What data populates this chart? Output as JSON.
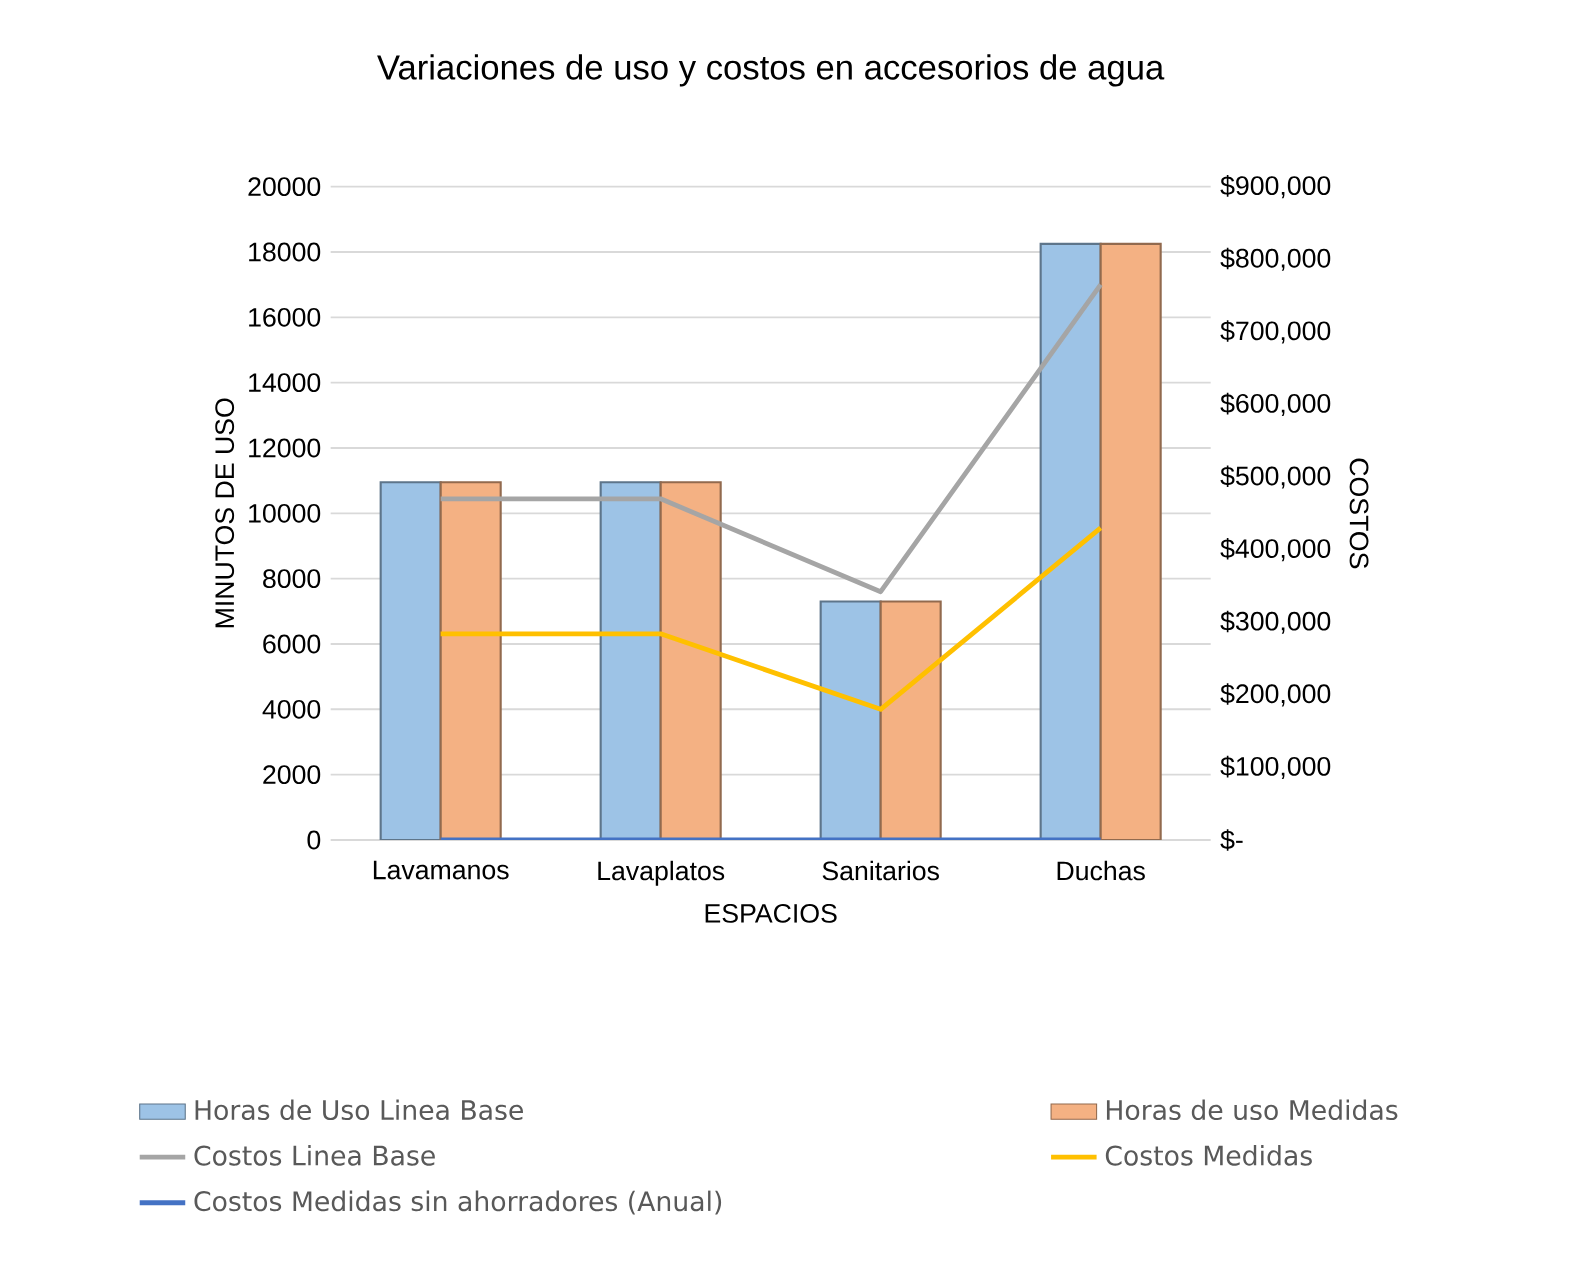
{
  "chart_data": {
    "type": "bar",
    "title": "Variaciones de uso y costos en accesorios de agua",
    "xlabel": "ESPACIOS",
    "ylabel": "MINUTOS DE USO",
    "y2label": "COSTOS",
    "categories": [
      "Lavamanos",
      "Lavaplatos",
      "Sanitarios",
      "Duchas"
    ],
    "series": [
      {
        "name": "Horas de Uso Linea Base",
        "color": "#9dc3e6",
        "values": [
          10950,
          10950,
          7300,
          18250
        ]
      },
      {
        "name": "Horas de uso Medidas",
        "color": "#f4b183",
        "values": [
          10950,
          10950,
          7300,
          18250
        ]
      },
      {
        "name": "Costos Linea Base",
        "type": "line",
        "axis": "y2",
        "color": "#a5a5a5",
        "values": [
          470000,
          470000,
          342000,
          765000
        ]
      },
      {
        "name": "Costos Medidas",
        "type": "line",
        "axis": "y2",
        "color": "#ffc000",
        "values": [
          284000,
          284000,
          180000,
          430000
        ]
      },
      {
        "name": "Costos Medidas sin ahorradores (Anual)",
        "type": "line",
        "axis": "y2",
        "color": "#4472c4",
        "values": [
          0,
          0,
          0,
          0
        ]
      }
    ],
    "ylim": [
      0,
      20000
    ],
    "yticks": [
      0,
      2000,
      4000,
      6000,
      8000,
      10000,
      12000,
      14000,
      16000,
      18000,
      20000
    ],
    "y2lim": [
      0,
      900000
    ],
    "y2ticks": [
      {
        "value": 0,
        "label": "$-"
      },
      {
        "value": 100000,
        "label": "$100,000"
      },
      {
        "value": 200000,
        "label": "$200,000"
      },
      {
        "value": 300000,
        "label": "$300,000"
      },
      {
        "value": 400000,
        "label": "$400,000"
      },
      {
        "value": 500000,
        "label": "$500,000"
      },
      {
        "value": 600000,
        "label": "$600,000"
      },
      {
        "value": 700000,
        "label": "$700,000"
      },
      {
        "value": 800000,
        "label": "$800,000"
      },
      {
        "value": 900000,
        "label": "$900,000"
      }
    ],
    "grid": "y",
    "legend": "bottom"
  }
}
